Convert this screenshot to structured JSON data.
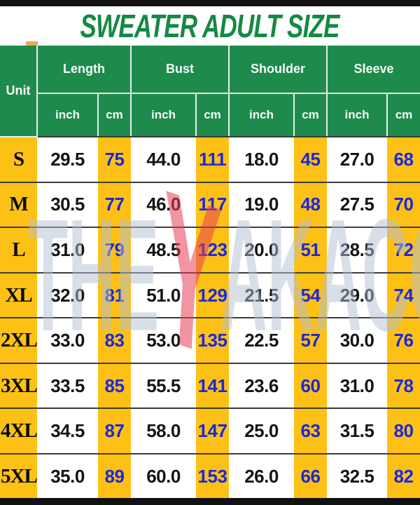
{
  "title": "SWEATER ADULT SIZE",
  "watermark": {
    "left": "THE",
    "symbol": "Y",
    "right": "AKACOM"
  },
  "colors": {
    "header_green": "#1e8b4c",
    "title_green": "#158944",
    "gold": "#fdc115",
    "value_blue": "#1c27dd",
    "bar_black": "#121212",
    "watermark_gray": "rgba(177,192,212,0.50)",
    "watermark_red": "rgba(228,62,84,0.55)"
  },
  "table": {
    "unit_label": "Unit",
    "groups": [
      "Length",
      "Bust",
      "Shoulder",
      "Sleeve"
    ],
    "sub_headers": [
      "inch",
      "cm",
      "inch",
      "cm",
      "inch",
      "cm",
      "inch",
      "cm"
    ],
    "rows": [
      {
        "size": "S",
        "values": [
          "29.5",
          "75",
          "44.0",
          "111",
          "18.0",
          "45",
          "27.0",
          "68"
        ]
      },
      {
        "size": "M",
        "values": [
          "30.5",
          "77",
          "46.0",
          "117",
          "19.0",
          "48",
          "27.5",
          "70"
        ]
      },
      {
        "size": "L",
        "values": [
          "31.0",
          "79",
          "48.5",
          "123",
          "20.0",
          "51",
          "28.5",
          "72"
        ]
      },
      {
        "size": "XL",
        "values": [
          "32.0",
          "81",
          "51.0",
          "129",
          "21.5",
          "54",
          "29.0",
          "74"
        ]
      },
      {
        "size": "2XL",
        "values": [
          "33.0",
          "83",
          "53.0",
          "135",
          "22.5",
          "57",
          "30.0",
          "76"
        ]
      },
      {
        "size": "3XL",
        "values": [
          "33.5",
          "85",
          "55.5",
          "141",
          "23.6",
          "60",
          "31.0",
          "78"
        ]
      },
      {
        "size": "4XL",
        "values": [
          "34.5",
          "87",
          "58.0",
          "147",
          "25.0",
          "63",
          "31.5",
          "80"
        ]
      },
      {
        "size": "5XL",
        "values": [
          "35.0",
          "89",
          "60.0",
          "153",
          "26.0",
          "66",
          "32.5",
          "82"
        ]
      }
    ]
  },
  "chart_data": {
    "type": "table",
    "title": "SWEATER ADULT SIZE",
    "columns": [
      "Unit",
      "Length inch",
      "Length cm",
      "Bust inch",
      "Bust cm",
      "Shoulder inch",
      "Shoulder cm",
      "Sleeve inch",
      "Sleeve cm"
    ],
    "rows": [
      [
        "S",
        29.5,
        75,
        44.0,
        111,
        18.0,
        45,
        27.0,
        68
      ],
      [
        "M",
        30.5,
        77,
        46.0,
        117,
        19.0,
        48,
        27.5,
        70
      ],
      [
        "L",
        31.0,
        79,
        48.5,
        123,
        20.0,
        51,
        28.5,
        72
      ],
      [
        "XL",
        32.0,
        81,
        51.0,
        129,
        21.5,
        54,
        29.0,
        74
      ],
      [
        "2XL",
        33.0,
        83,
        53.0,
        135,
        22.5,
        57,
        30.0,
        76
      ],
      [
        "3XL",
        33.5,
        85,
        55.5,
        141,
        23.6,
        60,
        31.0,
        78
      ],
      [
        "4XL",
        34.5,
        87,
        58.0,
        147,
        25.0,
        63,
        31.5,
        80
      ],
      [
        "5XL",
        35.0,
        89,
        60.0,
        153,
        26.0,
        66,
        32.5,
        82
      ]
    ]
  }
}
